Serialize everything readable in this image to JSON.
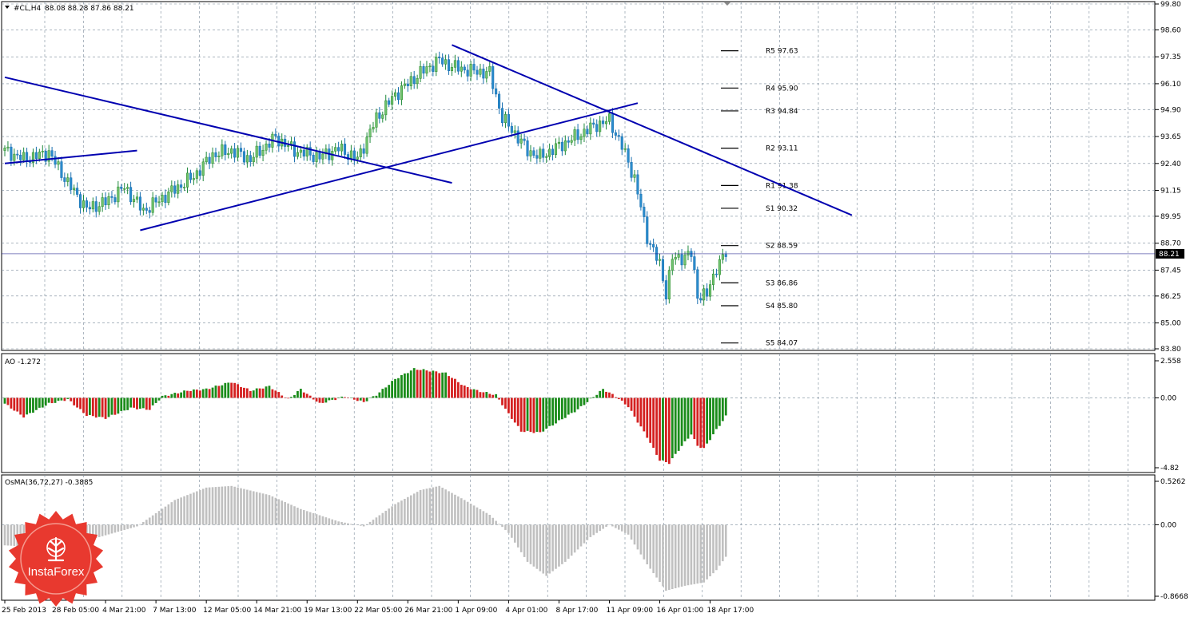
{
  "chart_data": [
    {
      "type": "candlestick",
      "header": {
        "symbol": "#CL,H4",
        "ohlc": "88.08 88.28 87.86 88.21"
      },
      "y_ticks": [
        "99.80",
        "98.60",
        "97.35",
        "96.10",
        "94.90",
        "93.65",
        "92.40",
        "91.15",
        "89.95",
        "88.70",
        "87.45",
        "86.25",
        "85.00",
        "83.80"
      ],
      "ylim": [
        83.8,
        99.8
      ],
      "current_price": "88.21",
      "x_ticks": [
        "25 Feb 2013",
        "28 Feb 05:00",
        "4 Mar 21:00",
        "7 Mar 13:00",
        "12 Mar 05:00",
        "14 Mar 21:00",
        "19 Mar 13:00",
        "22 Mar 05:00",
        "26 Mar 21:00",
        "1 Apr 09:00",
        "4 Apr 01:00",
        "8 Apr 17:00",
        "11 Apr 09:00",
        "16 Apr 01:00",
        "18 Apr 17:00"
      ],
      "x_tick_index": [
        0,
        16,
        32,
        48,
        64,
        80,
        96,
        112,
        128,
        144,
        160,
        176,
        192,
        208,
        224
      ],
      "close_anchors": [
        [
          0,
          93.0
        ],
        [
          6,
          92.6
        ],
        [
          14,
          92.9
        ],
        [
          20,
          91.5
        ],
        [
          26,
          90.3
        ],
        [
          32,
          90.6
        ],
        [
          38,
          91.3
        ],
        [
          44,
          90.2
        ],
        [
          52,
          91.0
        ],
        [
          60,
          91.8
        ],
        [
          66,
          92.8
        ],
        [
          72,
          93.0
        ],
        [
          78,
          92.6
        ],
        [
          86,
          93.6
        ],
        [
          92,
          93.0
        ],
        [
          100,
          92.7
        ],
        [
          106,
          93.1
        ],
        [
          112,
          92.6
        ],
        [
          118,
          94.5
        ],
        [
          124,
          95.6
        ],
        [
          132,
          96.6
        ],
        [
          138,
          97.2
        ],
        [
          142,
          96.9
        ],
        [
          148,
          96.7
        ],
        [
          154,
          96.6
        ],
        [
          158,
          94.5
        ],
        [
          162,
          93.8
        ],
        [
          166,
          93.0
        ],
        [
          170,
          92.7
        ],
        [
          176,
          93.2
        ],
        [
          182,
          93.7
        ],
        [
          188,
          94.2
        ],
        [
          192,
          94.4
        ],
        [
          196,
          93.2
        ],
        [
          200,
          91.7
        ],
        [
          204,
          89.0
        ],
        [
          208,
          87.7
        ],
        [
          210,
          86.4
        ],
        [
          212,
          88.0
        ],
        [
          214,
          88.0
        ],
        [
          218,
          88.2
        ],
        [
          220,
          86.3
        ],
        [
          223,
          86.3
        ],
        [
          226,
          87.6
        ],
        [
          229,
          88.21
        ]
      ],
      "pivots": [
        {
          "label": "R5 97.63",
          "value": 97.63
        },
        {
          "label": "R4 95.90",
          "value": 95.9
        },
        {
          "label": "R3 94.84",
          "value": 94.84
        },
        {
          "label": "R2 93.11",
          "value": 93.11
        },
        {
          "label": "R1 91.38",
          "value": 91.38
        },
        {
          "label": "S1 90.32",
          "value": 90.32
        },
        {
          "label": "S2 88.59",
          "value": 88.59
        },
        {
          "label": "S3 86.86",
          "value": 86.86
        },
        {
          "label": "S4 85.80",
          "value": 85.8
        },
        {
          "label": "S5 84.07",
          "value": 84.07
        }
      ],
      "trendlines": [
        {
          "from": [
            0,
            92.4
          ],
          "to": [
            42,
            93.0
          ]
        },
        {
          "from": [
            0,
            96.4
          ],
          "to": [
            142,
            91.5
          ]
        },
        {
          "from": [
            43,
            89.3
          ],
          "to": [
            201,
            95.2
          ]
        },
        {
          "from": [
            142,
            97.9
          ],
          "to": [
            269,
            90.0
          ]
        }
      ],
      "colors": {
        "trendline": "#0000b0",
        "up": "#1a8c1a",
        "down": "#d42020",
        "candle": "#2a8ccc",
        "bear_candle": "#2aa0a8"
      }
    },
    {
      "type": "bar",
      "title": "AO -1.272",
      "y_ticks": [
        "2.558",
        "0.00",
        "-4.82"
      ],
      "ylim": [
        -4.82,
        2.558
      ],
      "anchors": [
        [
          0,
          -0.4
        ],
        [
          6,
          -1.3
        ],
        [
          14,
          -0.4
        ],
        [
          20,
          -0.1
        ],
        [
          26,
          -1.2
        ],
        [
          32,
          -1.4
        ],
        [
          40,
          -0.7
        ],
        [
          46,
          -0.8
        ],
        [
          50,
          0.1
        ],
        [
          58,
          0.5
        ],
        [
          64,
          0.6
        ],
        [
          72,
          1.1
        ],
        [
          78,
          0.5
        ],
        [
          84,
          0.8
        ],
        [
          90,
          -0.1
        ],
        [
          94,
          0.6
        ],
        [
          100,
          -0.4
        ],
        [
          108,
          0.1
        ],
        [
          114,
          -0.3
        ],
        [
          118,
          0.2
        ],
        [
          124,
          1.3
        ],
        [
          130,
          2.0
        ],
        [
          134,
          1.9
        ],
        [
          140,
          1.7
        ],
        [
          146,
          0.8
        ],
        [
          150,
          0.5
        ],
        [
          156,
          0.2
        ],
        [
          160,
          -1.1
        ],
        [
          164,
          -2.3
        ],
        [
          170,
          -2.4
        ],
        [
          176,
          -1.6
        ],
        [
          182,
          -0.8
        ],
        [
          186,
          -0.1
        ],
        [
          190,
          0.6
        ],
        [
          194,
          0.1
        ],
        [
          198,
          -0.6
        ],
        [
          204,
          -2.7
        ],
        [
          208,
          -4.3
        ],
        [
          211,
          -4.5
        ],
        [
          214,
          -3.6
        ],
        [
          218,
          -2.5
        ],
        [
          220,
          -3.3
        ],
        [
          222,
          -3.5
        ],
        [
          226,
          -2.2
        ],
        [
          229,
          -1.272
        ]
      ],
      "colors": {
        "up": "#1a8c1a",
        "down": "#d42020"
      }
    },
    {
      "type": "bar",
      "title": "OsMA(36,72,27) -0.3885",
      "y_ticks": [
        "0.5262",
        "0.00",
        "-0.8668"
      ],
      "ylim": [
        -0.8668,
        0.5262
      ],
      "anchors": [
        [
          0,
          -0.25
        ],
        [
          14,
          -0.28
        ],
        [
          30,
          -0.15
        ],
        [
          42,
          -0.02
        ],
        [
          54,
          0.3
        ],
        [
          64,
          0.45
        ],
        [
          72,
          0.47
        ],
        [
          84,
          0.36
        ],
        [
          94,
          0.19
        ],
        [
          106,
          0.04
        ],
        [
          114,
          -0.02
        ],
        [
          124,
          0.25
        ],
        [
          132,
          0.42
        ],
        [
          138,
          0.47
        ],
        [
          146,
          0.3
        ],
        [
          154,
          0.12
        ],
        [
          160,
          -0.1
        ],
        [
          166,
          -0.45
        ],
        [
          172,
          -0.62
        ],
        [
          178,
          -0.45
        ],
        [
          186,
          -0.15
        ],
        [
          192,
          0.0
        ],
        [
          198,
          -0.12
        ],
        [
          204,
          -0.48
        ],
        [
          210,
          -0.8
        ],
        [
          216,
          -0.74
        ],
        [
          222,
          -0.7
        ],
        [
          226,
          -0.55
        ],
        [
          229,
          -0.3885
        ]
      ],
      "colors": {
        "bar": "#c0c0c0"
      }
    }
  ],
  "logo": {
    "text": "InstaForex",
    "icon": "instaforex-tree-icon",
    "color": "#e8392f"
  }
}
